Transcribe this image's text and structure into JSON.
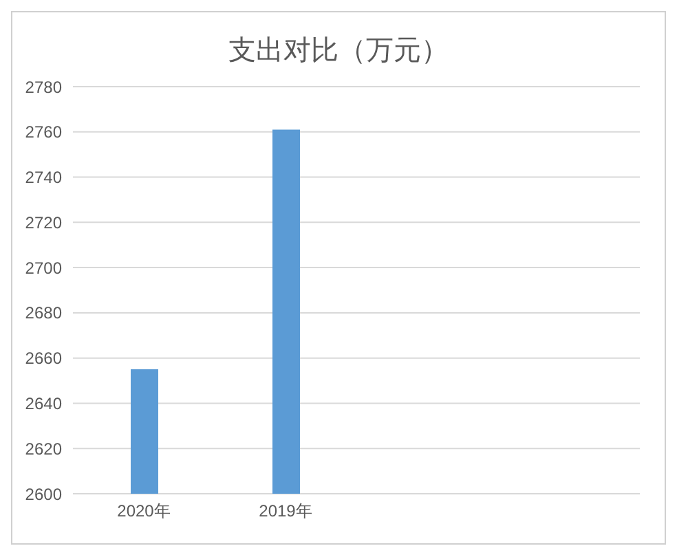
{
  "chart_data": {
    "type": "bar",
    "title": "支出对比（万元）",
    "categories": [
      "2020年",
      "2019年",
      null,
      null
    ],
    "values": [
      2655,
      2761,
      null,
      null
    ],
    "color": "#5b9bd5",
    "ylim": [
      2600,
      2780
    ],
    "yticks": [
      2600,
      2620,
      2640,
      2660,
      2680,
      2700,
      2720,
      2740,
      2760,
      2780
    ],
    "grid": "y"
  }
}
